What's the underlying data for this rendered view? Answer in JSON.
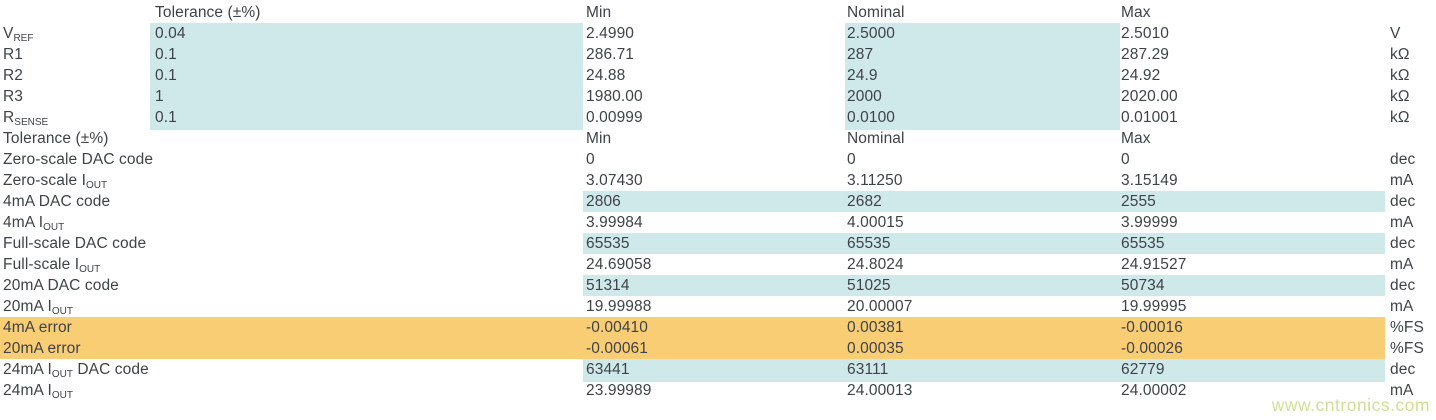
{
  "colors": {
    "cyan": "#cfe9eb",
    "orange": "#f9cd74",
    "text": "#3e4347",
    "watermark": "#cfe093"
  },
  "watermark": {
    "text": "www.cntronics.com"
  },
  "table": {
    "columns": [
      "",
      "Tolerance (±%)",
      "Min",
      "Nominal",
      "Max",
      ""
    ],
    "rows": [
      {
        "type": "header",
        "name": "header-1",
        "label": "",
        "tol": "Tolerance (±%)",
        "min": "Min",
        "nom": "Nominal",
        "max": "Max",
        "unit": "",
        "hl": "none"
      },
      {
        "name": "vref",
        "label": [
          {
            "t": "V"
          },
          {
            "t": "REF",
            "sub": true
          }
        ],
        "tol": "0.04",
        "min": "2.4990",
        "nom": "2.5000",
        "max": "2.5010",
        "unit": "V",
        "hl": "s1"
      },
      {
        "name": "r1",
        "label": [
          {
            "t": "R1"
          }
        ],
        "tol": "0.1",
        "min": "286.71",
        "nom": "287",
        "max": "287.29",
        "unit": "kΩ",
        "hl": "s1"
      },
      {
        "name": "r2",
        "label": [
          {
            "t": "R2"
          }
        ],
        "tol": "0.1",
        "min": "24.88",
        "nom": "24.9",
        "max": "24.92",
        "unit": "kΩ",
        "hl": "s1"
      },
      {
        "name": "r3",
        "label": [
          {
            "t": "R3"
          }
        ],
        "tol": "1",
        "min": "1980.00",
        "nom": "2000",
        "max": "2020.00",
        "unit": "kΩ",
        "hl": "s1"
      },
      {
        "name": "rsense",
        "label": [
          {
            "t": "R"
          },
          {
            "t": "SENSE",
            "sub": true
          }
        ],
        "tol": "0.1",
        "min": "0.00999",
        "nom": "0.0100",
        "max": "0.01001",
        "unit": "kΩ",
        "hl": "s1"
      },
      {
        "type": "header",
        "name": "header-2",
        "label": "Tolerance (±%)",
        "tol": "",
        "min": "Min",
        "nom": "Nominal",
        "max": "Max",
        "unit": "",
        "hl": "none"
      },
      {
        "name": "zero-scale-dac-code",
        "label": [
          {
            "t": "Zero-scale DAC code"
          }
        ],
        "tol": "",
        "min": "0",
        "nom": "0",
        "max": "0",
        "unit": "dec",
        "hl": "none"
      },
      {
        "name": "zero-scale-iout",
        "label": [
          {
            "t": "Zero-scale I"
          },
          {
            "t": "OUT",
            "sub": true
          }
        ],
        "tol": "",
        "min": "3.07430",
        "nom": "3.11250",
        "max": "3.15149",
        "unit": "mA",
        "hl": "none"
      },
      {
        "name": "4ma-dac-code",
        "label": [
          {
            "t": "4mA DAC code"
          }
        ],
        "tol": "",
        "min": "2806",
        "nom": "2682",
        "max": "2555",
        "unit": "dec",
        "hl": "vals"
      },
      {
        "name": "4ma-iout",
        "label": [
          {
            "t": "4mA I"
          },
          {
            "t": "OUT",
            "sub": true
          }
        ],
        "tol": "",
        "min": "3.99984",
        "nom": "4.00015",
        "max": "3.99999",
        "unit": "mA",
        "hl": "none"
      },
      {
        "name": "full-scale-dac-code",
        "label": [
          {
            "t": "Full-scale DAC code"
          }
        ],
        "tol": "",
        "min": "65535",
        "nom": "65535",
        "max": "65535",
        "unit": "dec",
        "hl": "vals"
      },
      {
        "name": "full-scale-iout",
        "label": [
          {
            "t": "Full-scale I"
          },
          {
            "t": "OUT",
            "sub": true
          }
        ],
        "tol": "",
        "min": "24.69058",
        "nom": "24.8024",
        "max": "24.91527",
        "unit": "mA",
        "hl": "none"
      },
      {
        "name": "20ma-dac-code",
        "label": [
          {
            "t": "20mA DAC code"
          }
        ],
        "tol": "",
        "min": "51314",
        "nom": "51025",
        "max": "50734",
        "unit": "dec",
        "hl": "vals"
      },
      {
        "name": "20ma-iout",
        "label": [
          {
            "t": "20mA I"
          },
          {
            "t": "OUT",
            "sub": true
          }
        ],
        "tol": "",
        "min": "19.99988",
        "nom": "20.00007",
        "max": "19.99995",
        "unit": "mA",
        "hl": "none"
      },
      {
        "name": "4ma-error",
        "label": [
          {
            "t": "4mA error"
          }
        ],
        "tol": "",
        "min": "-0.00410",
        "nom": "0.00381",
        "max": "-0.00016",
        "unit": "%FS",
        "hl": "row"
      },
      {
        "name": "20ma-error",
        "label": [
          {
            "t": "20mA error"
          }
        ],
        "tol": "",
        "min": "-0.00061",
        "nom": "0.00035",
        "max": "-0.00026",
        "unit": "%FS",
        "hl": "row"
      },
      {
        "name": "24ma-iout-dac-code",
        "label": [
          {
            "t": "24mA I"
          },
          {
            "t": "OUT",
            "sub": true
          },
          {
            "t": " DAC code"
          }
        ],
        "tol": "",
        "min": "63441",
        "nom": "63111",
        "max": "62779",
        "unit": "dec",
        "hl": "vals"
      },
      {
        "name": "24ma-iout",
        "label": [
          {
            "t": "24mA I"
          },
          {
            "t": "OUT",
            "sub": true
          }
        ],
        "tol": "",
        "min": "23.99989",
        "nom": "24.00013",
        "max": "24.00002",
        "unit": "mA",
        "hl": "none"
      }
    ]
  }
}
